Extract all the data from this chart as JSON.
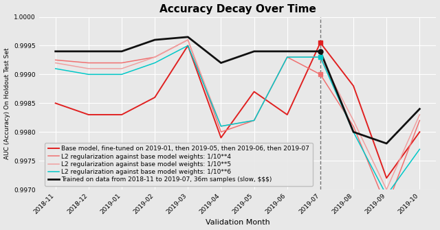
{
  "title": "Accuracy Decay Over Time",
  "xlabel": "Validation Month",
  "ylabel": "AUC (Accuracy) On Holdout Test Set",
  "x_labels": [
    "2018-11",
    "2018-12",
    "2019-01",
    "2019-02",
    "2019-03",
    "2019-04",
    "2019-05",
    "2019-06",
    "2019-07",
    "2019-08",
    "2019-09",
    "2019-10"
  ],
  "ylim": [
    0.997,
    1.0
  ],
  "yticks": [
    0.997,
    0.9975,
    0.998,
    0.9985,
    0.999,
    0.9995,
    1.0
  ],
  "dashed_line_x": 8,
  "series": [
    {
      "label": "Base model, fine-tuned on 2019-01, then 2019-05, then 2019-06, then 2019-07",
      "color": "#e02020",
      "linewidth": 1.4,
      "marker_idx": 8,
      "marker_shape": "s",
      "values": [
        0.9985,
        0.9983,
        0.9983,
        0.9986,
        0.9995,
        0.9979,
        0.9987,
        0.9983,
        0.99955,
        0.9988,
        0.9972,
        0.998
      ]
    },
    {
      "label": "L2 regularization against base model weights: 1/10**4",
      "color": "#f07070",
      "linewidth": 1.1,
      "marker_idx": 8,
      "marker_shape": "s",
      "values": [
        0.99925,
        0.9992,
        0.9992,
        0.9993,
        0.9996,
        0.998,
        0.9982,
        0.9993,
        0.999,
        0.9981,
        0.9967,
        0.9982
      ]
    },
    {
      "label": "L2 regularization against base model weights: 1/10**5",
      "color": "#f0a0a0",
      "linewidth": 1.1,
      "marker_idx": 8,
      "marker_shape": "s",
      "values": [
        0.9992,
        0.9991,
        0.9991,
        0.9993,
        0.9996,
        0.9981,
        0.9982,
        0.9993,
        0.9993,
        0.9982,
        0.997,
        0.9983
      ]
    },
    {
      "label": "L2 regularization against base model weights: 1/10**6",
      "color": "#00c8c8",
      "linewidth": 1.1,
      "marker_idx": 8,
      "marker_shape": "s",
      "values": [
        0.9991,
        0.999,
        0.999,
        0.9992,
        0.9995,
        0.9981,
        0.9982,
        0.9993,
        0.9993,
        0.998,
        0.9969,
        0.9977
      ]
    },
    {
      "label": "Trained on data from 2018-11 to 2019-07, 36m samples (slow, $$$)",
      "color": "#111111",
      "linewidth": 2.0,
      "marker_idx": 8,
      "marker_shape": "o",
      "values": [
        0.9994,
        0.9994,
        0.9994,
        0.9996,
        0.99965,
        0.9992,
        0.9994,
        0.9994,
        0.9994,
        0.998,
        0.9978,
        0.9984
      ]
    }
  ],
  "background_color": "#e8e8e8",
  "legend_fontsize": 6.5,
  "title_fontsize": 11
}
